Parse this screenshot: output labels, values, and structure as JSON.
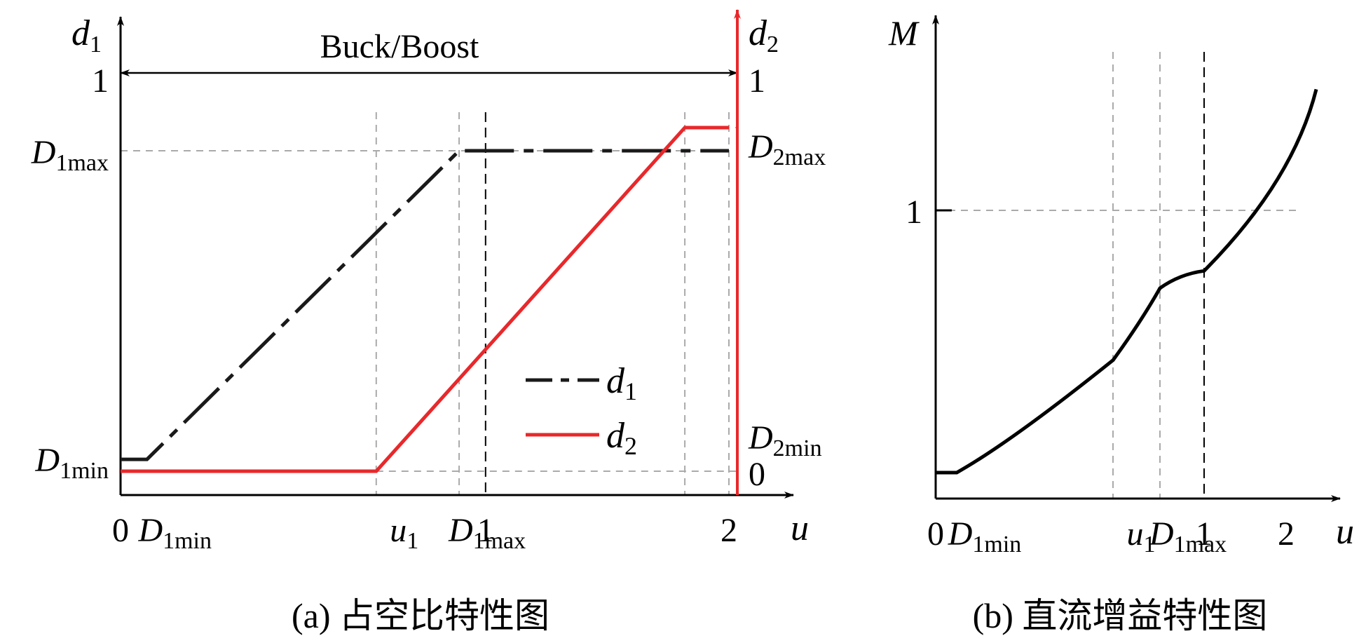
{
  "colors": {
    "d1": "#1a1a1a",
    "d2": "#e8282b",
    "grid": "#aaaaaa",
    "axis": "#000000"
  },
  "chart_data": [
    {
      "type": "line",
      "caption": "(a) 占空比特性图",
      "banner": "Buck/Boost",
      "x_axis": {
        "label": "u",
        "ticks": [
          {
            "pos": 0,
            "main": "0",
            "sub": ""
          },
          {
            "pos": 0.15,
            "main": "D",
            "sub": "1min"
          },
          {
            "pos": 1.45,
            "main": "u",
            "sub": "1"
          },
          {
            "pos": 1.92,
            "main": "D",
            "sub": "1max"
          },
          {
            "pos": 2.07,
            "main": "1",
            "sub": ""
          },
          {
            "pos": 3.45,
            "main": "2",
            "sub": ""
          }
        ]
      },
      "y_axis_left": {
        "label": "d",
        "label_sub": "1",
        "ticks": [
          {
            "value": 1,
            "main": "1",
            "sub": ""
          },
          {
            "value": 0.81,
            "main": "D",
            "sub": "1max"
          },
          {
            "value": 0.03,
            "main": "D",
            "sub": "1min"
          }
        ]
      },
      "y_axis_right": {
        "label": "d",
        "label_sub": "2",
        "ticks": [
          {
            "value": 1,
            "main": "1",
            "sub": ""
          },
          {
            "value": 0.88,
            "main": "D",
            "sub": "2max"
          },
          {
            "value": 0.08,
            "main": "D",
            "sub": "2min"
          },
          {
            "value": 0,
            "main": "0",
            "sub": ""
          }
        ]
      },
      "series": [
        {
          "name": "d1",
          "style": "dash-dot",
          "color": "#1a1a1a",
          "points": [
            [
              0,
              0.03
            ],
            [
              0.15,
              0.03
            ],
            [
              1.92,
              0.81
            ],
            [
              3.45,
              0.81
            ]
          ]
        },
        {
          "name": "d2",
          "style": "solid",
          "color": "#e8282b",
          "points": [
            [
              0,
              0
            ],
            [
              1.45,
              0
            ],
            [
              3.2,
              0.88
            ],
            [
              3.45,
              0.88
            ]
          ]
        }
      ],
      "legend": [
        {
          "label": "d",
          "sub": "1",
          "series": "d1"
        },
        {
          "label": "d",
          "sub": "2",
          "series": "d2"
        }
      ]
    },
    {
      "type": "line",
      "caption": "(b) 直流增益特性图",
      "x_axis": {
        "label": "u",
        "ticks": [
          {
            "pos": 0,
            "main": "0",
            "sub": ""
          },
          {
            "pos": 0.15,
            "main": "D",
            "sub": "1min"
          },
          {
            "pos": 1.45,
            "main": "u",
            "sub": "1"
          },
          {
            "pos": 1.92,
            "main": "D",
            "sub": "1max"
          },
          {
            "pos": 2.07,
            "main": "1",
            "sub": ""
          },
          {
            "pos": 3.45,
            "main": "2",
            "sub": ""
          }
        ]
      },
      "y_axis": {
        "label": "M",
        "ticks": [
          {
            "value": 1,
            "main": "1",
            "sub": ""
          }
        ]
      },
      "series": [
        {
          "name": "M",
          "color": "#000000",
          "points": [
            [
              0,
              0.09
            ],
            [
              0.15,
              0.09
            ],
            [
              0.6,
              0.22
            ],
            [
              1.45,
              0.48
            ],
            [
              1.92,
              0.73
            ],
            [
              2.07,
              0.79
            ],
            [
              3.45,
              1.15
            ],
            [
              4.0,
              1.42
            ]
          ]
        }
      ]
    }
  ]
}
